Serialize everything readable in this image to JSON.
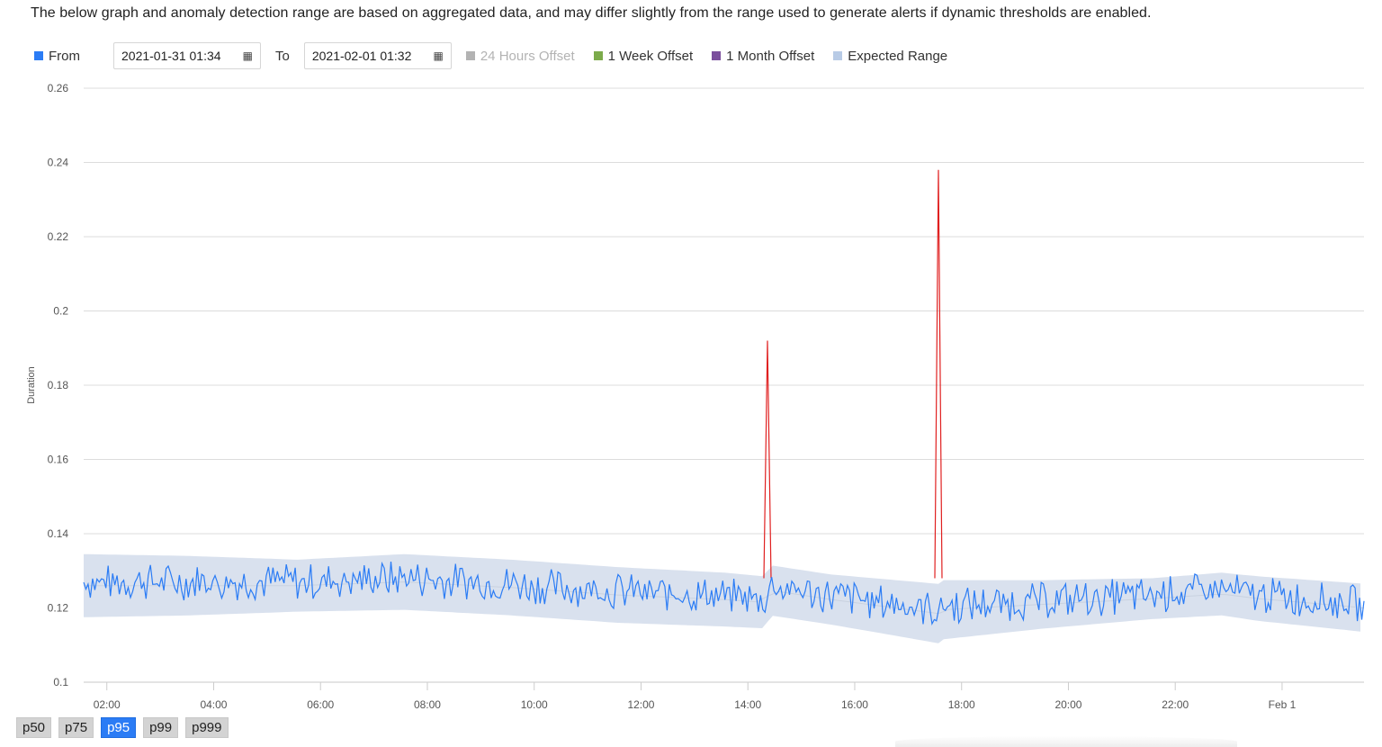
{
  "notice": "The below graph and anomaly detection range are based on aggregated data, and may differ slightly from the range used to generate alerts if dynamic thresholds are enabled.",
  "legend": {
    "from_label": "From",
    "from_value": "2021-01-31 01:34",
    "to_label": "To",
    "to_value": "2021-02-01 01:32",
    "calendar_icon": "calendar-icon",
    "items": [
      {
        "label": "24 Hours Offset",
        "color": "#b3b3b3",
        "enabled": false
      },
      {
        "label": "1 Week Offset",
        "color": "#7cab4b",
        "enabled": true
      },
      {
        "label": "1 Month Offset",
        "color": "#7b4f9d",
        "enabled": true
      },
      {
        "label": "Expected Range",
        "color": "#b8cbe6",
        "enabled": true
      }
    ],
    "series_color": "#2b7cf5"
  },
  "percentiles": [
    {
      "label": "p50",
      "active": false
    },
    {
      "label": "p75",
      "active": false
    },
    {
      "label": "p95",
      "active": true
    },
    {
      "label": "p99",
      "active": false
    },
    {
      "label": "p999",
      "active": false
    }
  ],
  "chart_data": {
    "type": "line",
    "title": "",
    "xlabel": "",
    "ylabel": "Duration",
    "ylim": [
      0.1,
      0.26
    ],
    "yticks": [
      "0.26",
      "0.24",
      "0.22",
      "0.2",
      "0.18",
      "0.16",
      "0.14",
      "0.12",
      "0.1"
    ],
    "xlim": [
      "2021-01-31 01:34",
      "2021-02-01 01:32"
    ],
    "xticks": [
      "02:00",
      "04:00",
      "06:00",
      "08:00",
      "10:00",
      "12:00",
      "14:00",
      "16:00",
      "18:00",
      "20:00",
      "22:00",
      "Feb 1"
    ],
    "grid": true,
    "legend_position": "top",
    "colors": {
      "series": "#2b7cf5",
      "anomaly": "#e02020",
      "band": "#d9e1ee",
      "grid": "#dcdcdc"
    },
    "expected_range": {
      "x_hours": [
        0,
        2,
        4,
        6,
        8,
        10,
        12,
        12.75,
        12.85,
        14,
        16,
        16.05,
        18,
        20,
        21.3,
        22,
        24,
        24.0
      ],
      "lower": [
        0.1175,
        0.118,
        0.119,
        0.1195,
        0.118,
        0.116,
        0.115,
        0.1145,
        0.118,
        0.1155,
        0.1105,
        0.1115,
        0.1145,
        0.117,
        0.118,
        0.1165,
        0.1135,
        0.1115
      ],
      "upper": [
        0.1345,
        0.134,
        0.133,
        0.1345,
        0.133,
        0.131,
        0.1295,
        0.1285,
        0.1315,
        0.129,
        0.1265,
        0.1275,
        0.1275,
        0.128,
        0.1295,
        0.1285,
        0.1265,
        0.1275
      ]
    },
    "series": [
      {
        "name": "p95 Duration",
        "spikes": [
          {
            "x_hour": 12.8,
            "y": 0.192
          },
          {
            "x_hour": 16.0,
            "y": 0.238
          }
        ],
        "baseline_mean": 0.1235,
        "noise_amplitude": 0.005,
        "points_per_hour": 24
      }
    ]
  }
}
